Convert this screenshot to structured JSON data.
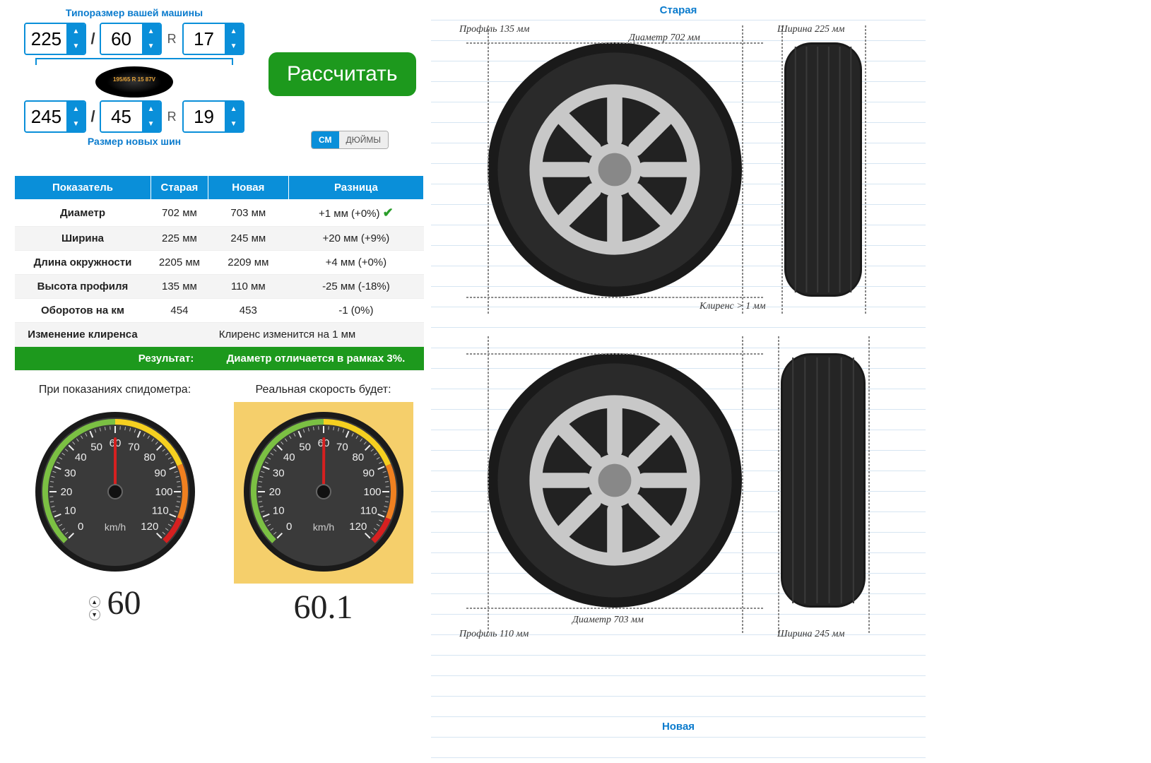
{
  "labels": {
    "your_size": "Типоразмер вашей машины",
    "new_size": "Размер новых шин",
    "calculate": "Рассчитать",
    "unit_cm": "СМ",
    "unit_in": "ДЮЙМЫ",
    "speedo_left": "При показаниях спидометра:",
    "speedo_right": "Реальная скорость будет:",
    "old": "Старая",
    "new": "Новая"
  },
  "size_old": {
    "width": "225",
    "profile": "60",
    "rim": "17"
  },
  "size_new": {
    "width": "245",
    "profile": "45",
    "rim": "19"
  },
  "unit_active": "cm",
  "table": {
    "headers": [
      "Показатель",
      "Старая",
      "Новая",
      "Разница"
    ],
    "rows": [
      {
        "label": "Диаметр",
        "old": "702 мм",
        "new": "703 мм",
        "diff": "+1 мм (+0%)",
        "ok": true
      },
      {
        "label": "Ширина",
        "old": "225 мм",
        "new": "245 мм",
        "diff": "+20 мм (+9%)",
        "ok": false
      },
      {
        "label": "Длина окружности",
        "old": "2205 мм",
        "new": "2209 мм",
        "diff": "+4 мм (+0%)",
        "ok": false
      },
      {
        "label": "Высота профиля",
        "old": "135 мм",
        "new": "110 мм",
        "diff": "-25 мм (-18%)",
        "ok": false
      },
      {
        "label": "Оборотов на км",
        "old": "454",
        "new": "453",
        "diff": "-1 (0%)",
        "ok": false
      }
    ],
    "clearance_label": "Изменение клиренса",
    "clearance_value": "Клиренс изменится на 1 мм",
    "result_label": "Результат:",
    "result_value": "Диаметр отличается в рамках 3%."
  },
  "speedo": {
    "input_value": "60",
    "real_value": "60.1",
    "ticks": [
      0,
      10,
      20,
      30,
      40,
      50,
      60,
      70,
      80,
      90,
      100,
      110,
      120
    ],
    "needle_input": 60,
    "needle_real": 60.1,
    "unit": "km/h",
    "face_color": "#3a3a3a",
    "rim_color": "#1a1a1a",
    "needle_color": "#d62020",
    "arc_colors": [
      "#7bc043",
      "#f5d020",
      "#f08020",
      "#d62020"
    ]
  },
  "diagram": {
    "old": {
      "profile": "Профиль 135 мм",
      "diameter": "Диаметр 702 мм",
      "width": "Ширина 225 мм",
      "clearance": "Клиренс > 1 мм",
      "wheel_d": 360,
      "tire_w": 110,
      "tire_h": 360
    },
    "new": {
      "profile": "Профиль 110 мм",
      "diameter": "Диаметр 703 мм",
      "width": "Ширина 245 мм",
      "wheel_d": 360,
      "tire_w": 120,
      "tire_h": 360
    },
    "colors": {
      "tire": "#1a1a1a",
      "rim": "#c8c8c8",
      "hub": "#888",
      "dash": "#777"
    }
  }
}
